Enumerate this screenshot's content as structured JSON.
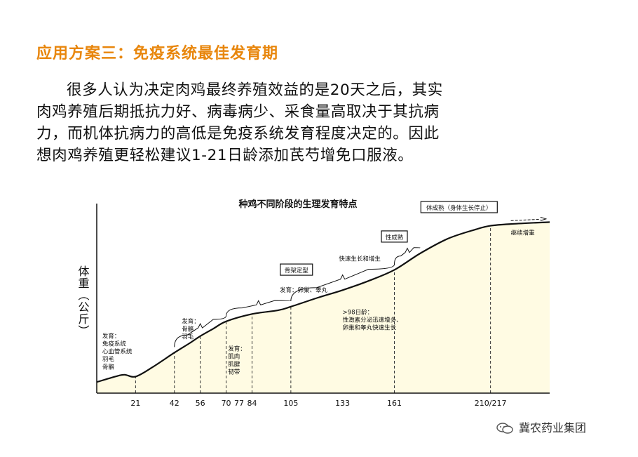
{
  "slide": {
    "title": "应用方案三：免疫系统最佳发育期",
    "paragraph_lines": [
      "很多人认为决定肉鸡最终养殖效益的是20天之后，其实",
      "肉鸡养殖后期抵抗力好、病毒病少、采食量高取决于其抗病",
      "力，而机体抗病力的高低是免疫系统发育程度决定的。因此",
      "想肉鸡养殖更轻松建议1-21日龄添加芪芍增免口服液。"
    ]
  },
  "watermark": {
    "text": "冀农药业集团",
    "icon": "wechat-icon"
  },
  "chart_data": {
    "type": "area",
    "title": "种鸡不同阶段的生理发育特点",
    "ylabel": "体重（公斤）",
    "xlabel": "",
    "x_ticks": [
      "21",
      "42",
      "56",
      "70",
      "77",
      "84",
      "105",
      "133",
      "161",
      "210/217"
    ],
    "x_tick_values": [
      21,
      42,
      56,
      70,
      77,
      84,
      105,
      133,
      161,
      213
    ],
    "dashed_marks": [
      21,
      42,
      56,
      70,
      84,
      105,
      161,
      213
    ],
    "xlim": [
      0,
      245
    ],
    "ylim": [
      0,
      1
    ],
    "series": [
      {
        "x": [
          0,
          10,
          15,
          21,
          30,
          42,
          50,
          56,
          63,
          70,
          84,
          98,
          105,
          120,
          133,
          147,
          161,
          175,
          190,
          205,
          213,
          225,
          245
        ],
        "y": [
          0.06,
          0.09,
          0.1,
          0.09,
          0.14,
          0.22,
          0.27,
          0.31,
          0.35,
          0.39,
          0.43,
          0.45,
          0.47,
          0.52,
          0.56,
          0.61,
          0.67,
          0.76,
          0.84,
          0.89,
          0.91,
          0.92,
          0.93
        ]
      }
    ],
    "fill_color": "#fffbe3",
    "line_color": "#111111",
    "annotations": [
      {
        "id": "stage1",
        "x": 3,
        "y": 0.3,
        "lines": [
          "发育：",
          "免疫系统",
          "心血管系统",
          "羽毛",
          "骨骼"
        ]
      },
      {
        "id": "stage2",
        "x": 46,
        "y": 0.38,
        "lines": [
          "发育：",
          "骨骼",
          "羽毛"
        ]
      },
      {
        "id": "stage3",
        "x": 71,
        "y": 0.23,
        "lines": [
          "发育：",
          "肌肉",
          "肌腱",
          "韧带"
        ]
      },
      {
        "id": "stage4",
        "x": 99,
        "y": 0.55,
        "lines": [
          "发育：卵巢、睾丸"
        ]
      },
      {
        "id": "stage5",
        "x": 131,
        "y": 0.72,
        "lines": [
          "快速生长和增生"
        ]
      },
      {
        "id": "stage6",
        "x": 133,
        "y": 0.43,
        "lines": [
          ">98日龄：",
          "性激素分泌迅速增多、",
          "卵巢和睾丸快速生长"
        ]
      },
      {
        "id": "cont",
        "x": 224,
        "y": 0.86,
        "lines": [
          "继续增重"
        ]
      }
    ],
    "boxes": [
      {
        "id": "skeleton",
        "x": 108,
        "y": 0.66,
        "text": "骨架定型"
      },
      {
        "id": "sexmat",
        "x": 161,
        "y": 0.84,
        "text": "性成熟"
      },
      {
        "id": "bodymat",
        "x": 196,
        "y": 1.0,
        "text": "体成熟（身体生长停止）"
      }
    ],
    "braces": [
      {
        "x0": 42,
        "x1": 70,
        "y": 0.38
      },
      {
        "x0": 70,
        "x1": 105,
        "y": 0.54
      },
      {
        "x0": 105,
        "x1": 161,
        "y": 0.71
      },
      {
        "x0": 161,
        "x1": 175,
        "y": 0.79
      }
    ]
  }
}
